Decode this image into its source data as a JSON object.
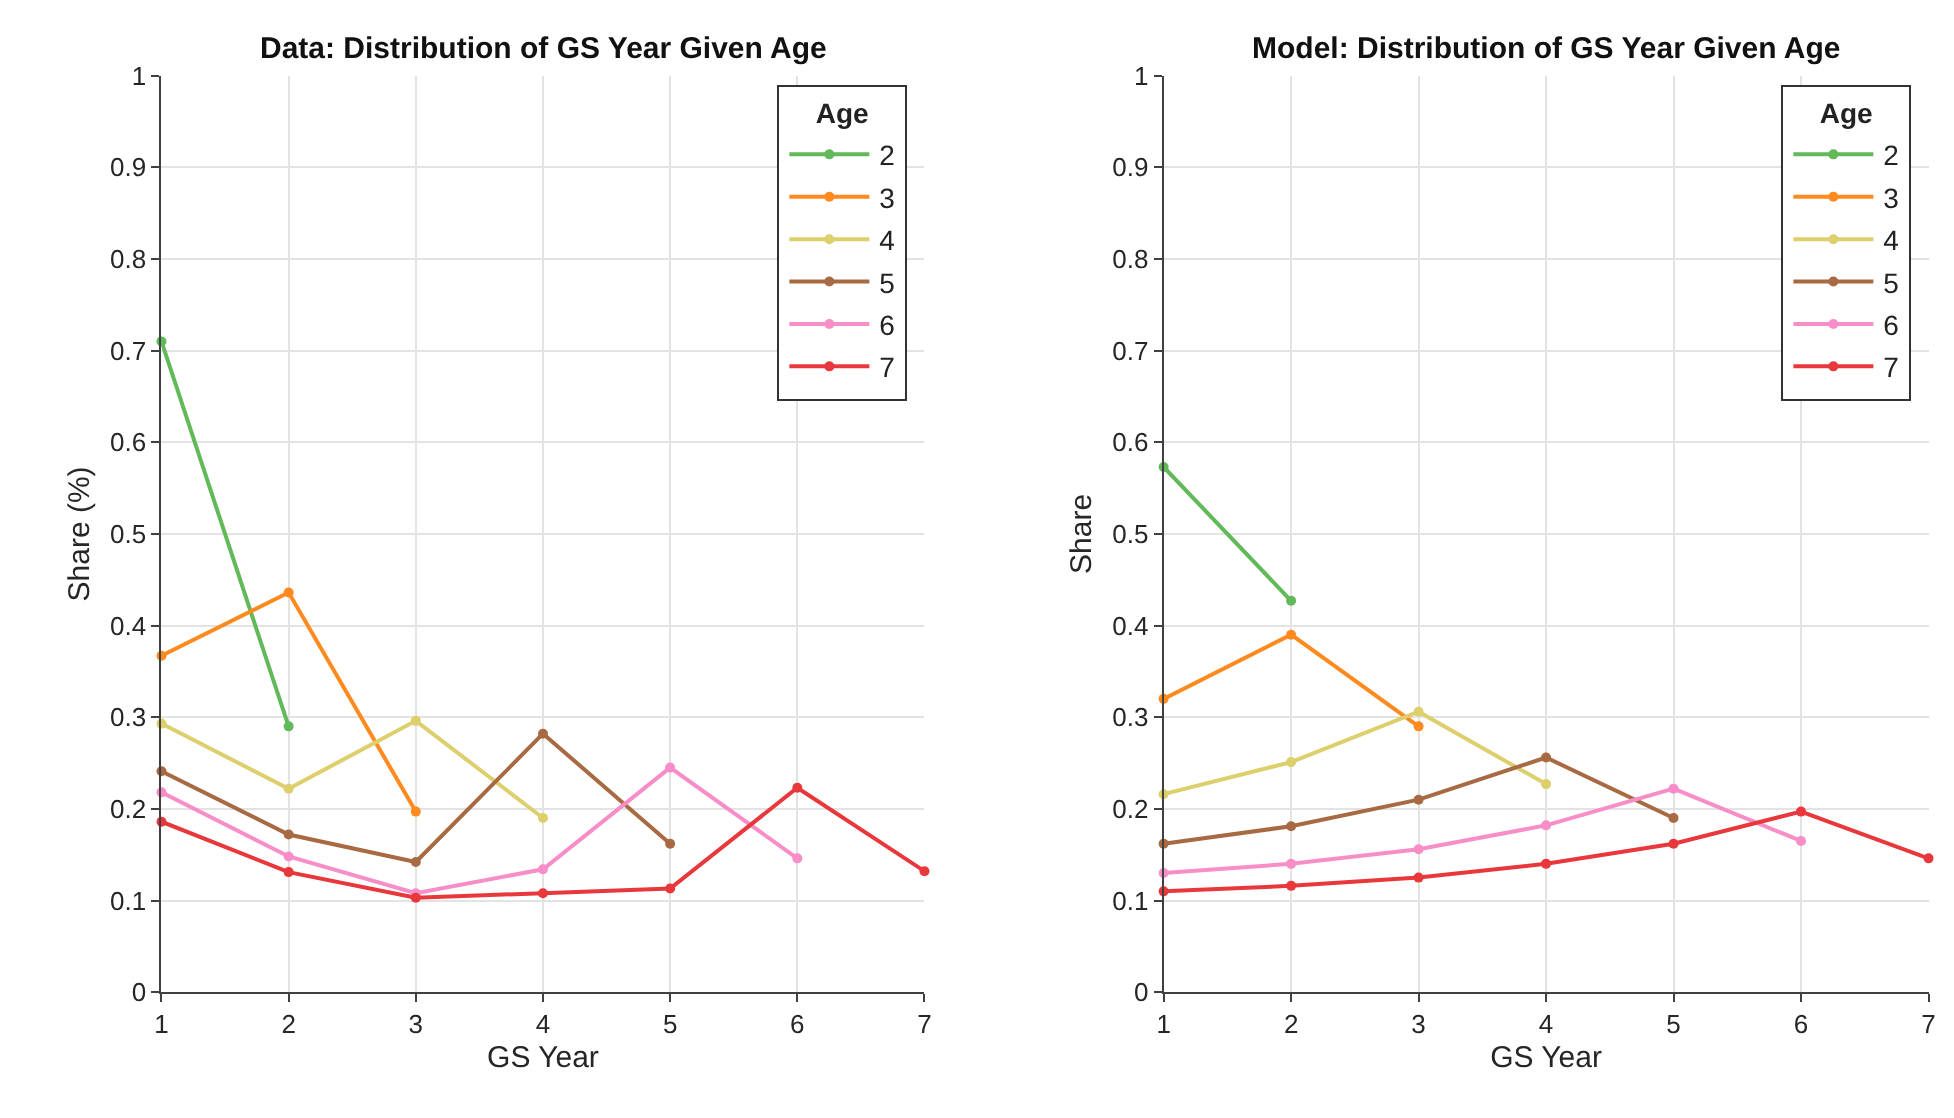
{
  "chart_data": [
    {
      "type": "line",
      "title": "Data: Distribution of GS Year Given Age",
      "xlabel": "GS Year",
      "ylabel": "Share (%)",
      "legend_title": "Age",
      "legend": "top right",
      "grid": true,
      "marker": "circle",
      "line_style": "solid",
      "xlim": [
        1,
        7
      ],
      "xticks": [
        1,
        2,
        3,
        4,
        5,
        6,
        7
      ],
      "ylim": [
        0,
        1
      ],
      "yticks": [
        0,
        0.1,
        0.2,
        0.3,
        0.4,
        0.5,
        0.6,
        0.7,
        0.8,
        0.9,
        1
      ],
      "series": [
        {
          "name": "2",
          "color": "#62b95a",
          "x": [
            1,
            2
          ],
          "values": [
            0.71,
            0.29
          ]
        },
        {
          "name": "3",
          "color": "#ff8a1f",
          "x": [
            1,
            2,
            3
          ],
          "values": [
            0.367,
            0.436,
            0.197
          ]
        },
        {
          "name": "4",
          "color": "#dccf6c",
          "x": [
            1,
            2,
            3,
            4
          ],
          "values": [
            0.293,
            0.222,
            0.296,
            0.19
          ]
        },
        {
          "name": "5",
          "color": "#a86a42",
          "x": [
            1,
            2,
            3,
            4,
            5
          ],
          "values": [
            0.241,
            0.172,
            0.142,
            0.282,
            0.162
          ]
        },
        {
          "name": "6",
          "color": "#f88ec8",
          "x": [
            1,
            2,
            3,
            4,
            5,
            6
          ],
          "values": [
            0.218,
            0.148,
            0.108,
            0.134,
            0.245,
            0.146
          ]
        },
        {
          "name": "7",
          "color": "#e8383b",
          "x": [
            1,
            2,
            3,
            4,
            5,
            6,
            7
          ],
          "values": [
            0.186,
            0.131,
            0.103,
            0.108,
            0.113,
            0.223,
            0.132
          ]
        }
      ]
    },
    {
      "type": "line",
      "title": "Model: Distribution of GS Year Given Age",
      "xlabel": "GS Year",
      "ylabel": "Share",
      "legend_title": "Age",
      "legend": "top right",
      "grid": true,
      "marker": "circle",
      "line_style": "solid",
      "xlim": [
        1,
        7
      ],
      "xticks": [
        1,
        2,
        3,
        4,
        5,
        6,
        7
      ],
      "ylim": [
        0,
        1
      ],
      "yticks": [
        0,
        0.1,
        0.2,
        0.3,
        0.4,
        0.5,
        0.6,
        0.7,
        0.8,
        0.9,
        1
      ],
      "series": [
        {
          "name": "2",
          "color": "#62b95a",
          "x": [
            1,
            2
          ],
          "values": [
            0.573,
            0.427
          ]
        },
        {
          "name": "3",
          "color": "#ff8a1f",
          "x": [
            1,
            2,
            3
          ],
          "values": [
            0.32,
            0.39,
            0.29
          ]
        },
        {
          "name": "4",
          "color": "#dccf6c",
          "x": [
            1,
            2,
            3,
            4
          ],
          "values": [
            0.216,
            0.251,
            0.306,
            0.227
          ]
        },
        {
          "name": "5",
          "color": "#a86a42",
          "x": [
            1,
            2,
            3,
            4,
            5
          ],
          "values": [
            0.162,
            0.181,
            0.21,
            0.256,
            0.19
          ]
        },
        {
          "name": "6",
          "color": "#f88ec8",
          "x": [
            1,
            2,
            3,
            4,
            5,
            6
          ],
          "values": [
            0.13,
            0.14,
            0.156,
            0.182,
            0.222,
            0.165
          ]
        },
        {
          "name": "7",
          "color": "#e8383b",
          "x": [
            1,
            2,
            3,
            4,
            5,
            6,
            7
          ],
          "values": [
            0.11,
            0.116,
            0.125,
            0.14,
            0.162,
            0.197,
            0.146
          ]
        }
      ]
    }
  ]
}
